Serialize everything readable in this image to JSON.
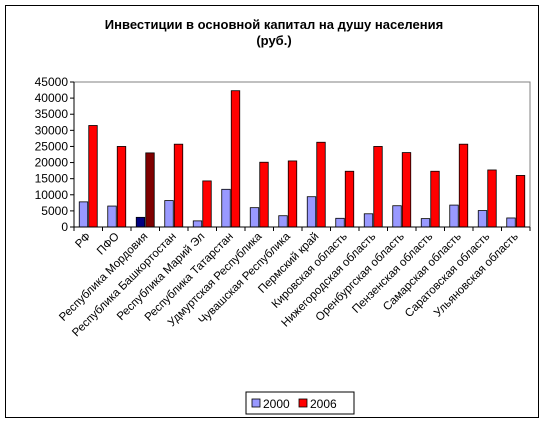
{
  "chart_data": {
    "type": "bar",
    "title_line1": "Инвестиции в основной капитал на душу населения",
    "title_line2": "(руб.)",
    "ylim": [
      0,
      45000
    ],
    "yticks": [
      "0",
      "5000",
      "10000",
      "15000",
      "20000",
      "25000",
      "30000",
      "35000",
      "40000",
      "45000"
    ],
    "grid": false,
    "legend_position": "bottom",
    "categories": [
      "РФ",
      "ПФО",
      "Республика Мордовия",
      "Республика Башкортостан",
      "Республика Марий Эл",
      "Республика Татарстан",
      "Удмуртская Республика",
      "Чувашская Республика",
      "Пермский край",
      "Кировская область",
      "Нижегородская область",
      "Оренбургская область",
      "Пензенская область",
      "Самарская область",
      "Саратовская область",
      "Ульяновская область"
    ],
    "series": [
      {
        "name": "2000",
        "color": "#9999FF",
        "highlight_color": "#000080",
        "values": [
          7800,
          6500,
          3000,
          8200,
          1900,
          11700,
          6000,
          3500,
          9400,
          2700,
          4100,
          6600,
          2600,
          6800,
          5100,
          2800
        ]
      },
      {
        "name": "2006",
        "color": "#FF0000",
        "highlight_color": "#800000",
        "values": [
          31500,
          25000,
          23000,
          25700,
          14300,
          42300,
          20100,
          20500,
          26300,
          17300,
          25000,
          23100,
          17300,
          25700,
          17700,
          16000
        ]
      }
    ],
    "highlight_index": 2,
    "plot_background": "#ffffff",
    "plot_border_color": "#808080"
  }
}
